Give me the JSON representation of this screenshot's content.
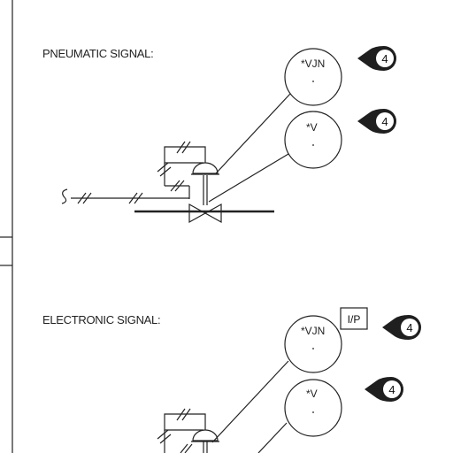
{
  "sections": [
    {
      "heading": "PNEUMATIC SIGNAL:",
      "instruments": [
        {
          "tag": "*VJN",
          "flag": "4"
        },
        {
          "tag": "*V",
          "flag": "4"
        }
      ]
    },
    {
      "heading": "ELECTRONIC SIGNAL:",
      "transducer_label": "I/P",
      "instruments": [
        {
          "tag": "*VJN",
          "flag": "4"
        },
        {
          "tag": "*V",
          "flag": "4"
        }
      ]
    }
  ],
  "colors": {
    "ink": "#222222",
    "flag_fill": "#1f1f1f",
    "paper": "#ffffff"
  }
}
